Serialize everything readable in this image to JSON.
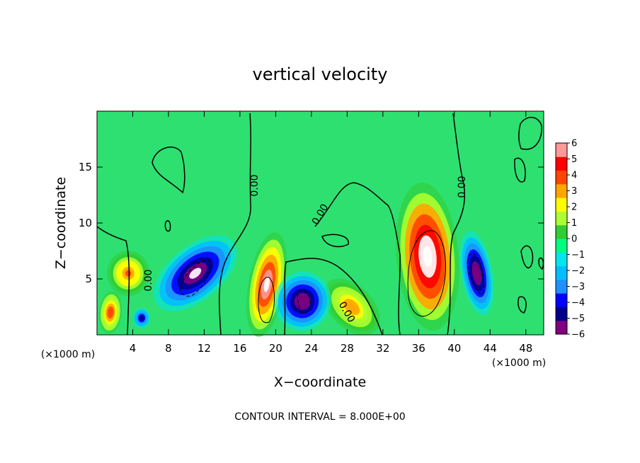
{
  "chart_data": {
    "type": "heatmap",
    "title": "vertical velocity",
    "xlabel": "X−coordinate",
    "ylabel": "Z−coordinate",
    "x_unit_left": "(×1000 m)",
    "x_unit_right": "(×1000 m)",
    "xlim": [
      0,
      50
    ],
    "ylim": [
      0,
      20
    ],
    "x_ticks": [
      4,
      8,
      12,
      16,
      20,
      24,
      28,
      32,
      36,
      40,
      44,
      48
    ],
    "y_ticks": [
      5,
      10,
      15
    ],
    "colorbar": {
      "range": [
        -6,
        6
      ],
      "ticks": [
        "6",
        "5",
        "4",
        "3",
        "2",
        "1",
        "0",
        "−1",
        "−2",
        "−3",
        "−4",
        "−5",
        "−6"
      ],
      "colors": [
        "#800080",
        "#00008b",
        "#0000ff",
        "#1e90ff",
        "#00bfff",
        "#00e5ee",
        "#00ff7f",
        "#32cd32",
        "#adff2f",
        "#ffff00",
        "#ffa500",
        "#ff4500",
        "#ff0000",
        "#ff9999"
      ]
    },
    "contour_labels": [
      "0.00",
      "0.00",
      "0.00",
      "0.00",
      "0.00",
      "0.00"
    ],
    "contour_interval_text": "CONTOUR INTERVAL = 8.000E+00",
    "features": [
      {
        "sign": "up",
        "x": 37,
        "z": 7,
        "peak": 8
      },
      {
        "sign": "up",
        "x": 19,
        "z": 4.5,
        "peak": 7
      },
      {
        "sign": "up",
        "x": 3.5,
        "z": 5.5,
        "peak": 4.5
      },
      {
        "sign": "up",
        "x": 1.5,
        "z": 2,
        "peak": 5
      },
      {
        "sign": "up",
        "x": 28.5,
        "z": 2.5,
        "peak": 4
      },
      {
        "sign": "down",
        "x": 11,
        "z": 5.5,
        "peak": -7
      },
      {
        "sign": "down",
        "x": 23,
        "z": 3,
        "peak": -6
      },
      {
        "sign": "down",
        "x": 42.5,
        "z": 5.5,
        "peak": -6
      },
      {
        "sign": "down",
        "x": 5,
        "z": 1.5,
        "peak": -5
      }
    ]
  }
}
